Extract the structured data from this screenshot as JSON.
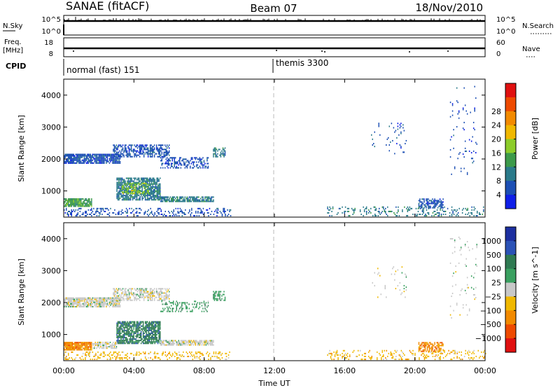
{
  "header": {
    "station": "SANAE (fitACF)",
    "beam": "Beam 07",
    "date": "18/Nov/2010"
  },
  "top_panels": {
    "nsky_label": "N.Sky",
    "nsearch_label": "N.Search",
    "nsky_ticks": [
      "10^5",
      "10^0"
    ],
    "nsearch_ticks": [
      "10^5",
      "10^0"
    ],
    "freq_label_1": "Freq.",
    "freq_label_2": "[MHz]",
    "freq_ticks": [
      "18",
      "8"
    ],
    "nave_label": "Nave",
    "nave_ticks": [
      "60",
      "0"
    ],
    "cpid_label": "CPID",
    "cpid_segments": [
      {
        "label": "normal (fast) 151",
        "start_hour": 0
      },
      {
        "label": "themis 3300",
        "start_hour": 12
      }
    ]
  },
  "chart_data": [
    {
      "type": "heatmap",
      "title": "",
      "quantity": "Power",
      "xlabel": "Time UT",
      "ylabel": "Slant Range [km]",
      "colorbar_label": "Power [dB]",
      "xlim": [
        0,
        24
      ],
      "ylim": [
        180,
        4500
      ],
      "x_ticks": [
        "00:00",
        "04:00",
        "08:00",
        "12:00",
        "16:00",
        "20:00",
        "00:00"
      ],
      "y_ticks": [
        1000,
        2000,
        3000,
        4000
      ],
      "colorbar_ticks": [
        "4",
        "8",
        "12",
        "16",
        "20",
        "24",
        "28"
      ],
      "colors": [
        "#0f1fe8",
        "#1c4fb4",
        "#2a7a8a",
        "#3c9a4a",
        "#8ccc2a",
        "#f0b800",
        "#f28a00",
        "#ee4a00",
        "#e01010"
      ],
      "regions": [
        {
          "t0": 0.0,
          "t1": 3.2,
          "r0": 1850,
          "r1": 2150,
          "level": 1,
          "density": 0.85
        },
        {
          "t0": 2.8,
          "t1": 6.0,
          "r0": 2050,
          "r1": 2450,
          "level": 1,
          "density": 0.6
        },
        {
          "t0": 5.5,
          "t1": 8.2,
          "r0": 1700,
          "r1": 2050,
          "level": 1,
          "density": 0.4
        },
        {
          "t0": 8.5,
          "t1": 9.2,
          "r0": 2050,
          "r1": 2350,
          "level": 2,
          "density": 0.6
        },
        {
          "t0": 3.0,
          "t1": 5.5,
          "r0": 700,
          "r1": 1400,
          "level": 2,
          "density": 0.8
        },
        {
          "t0": 3.3,
          "t1": 4.8,
          "r0": 900,
          "r1": 1250,
          "level": 4,
          "density": 0.4
        },
        {
          "t0": 0.0,
          "t1": 1.6,
          "r0": 500,
          "r1": 750,
          "level": 3,
          "density": 0.9
        },
        {
          "t0": 5.5,
          "t1": 8.5,
          "r0": 650,
          "r1": 800,
          "level": 2,
          "density": 0.8
        },
        {
          "t0": 20.2,
          "t1": 21.6,
          "r0": 450,
          "r1": 750,
          "level": 1,
          "density": 0.7
        },
        {
          "t0": 17.5,
          "t1": 19.5,
          "r0": 2100,
          "r1": 3100,
          "level": 1,
          "density": 0.05
        },
        {
          "t0": 22.0,
          "t1": 23.5,
          "r0": 1500,
          "r1": 4300,
          "level": 1,
          "density": 0.04
        },
        {
          "t0": 0.0,
          "t1": 9.5,
          "r0": 200,
          "r1": 450,
          "level": 1,
          "density": 0.25
        },
        {
          "t0": 15.0,
          "t1": 24.0,
          "r0": 200,
          "r1": 500,
          "level": 2,
          "density": 0.2
        }
      ]
    },
    {
      "type": "heatmap",
      "title": "",
      "quantity": "Velocity",
      "xlabel": "Time UT",
      "ylabel": "Slant Range [km]",
      "colorbar_label": "Velocity [m s^-1]",
      "xlim": [
        0,
        24
      ],
      "ylim": [
        180,
        4500
      ],
      "x_ticks": [
        "00:00",
        "04:00",
        "08:00",
        "12:00",
        "16:00",
        "20:00",
        "00:00"
      ],
      "y_ticks": [
        1000,
        2000,
        3000,
        4000
      ],
      "colorbar_ticks": [
        "1000",
        "500",
        "100",
        "25",
        "−25",
        "−100",
        "−500",
        "−1000"
      ],
      "colors": [
        "#1c2fa0",
        "#2b52b6",
        "#2f7a52",
        "#3aa060",
        "#c8c8c8",
        "#f0b800",
        "#f28a00",
        "#ee4a00",
        "#e01010"
      ],
      "regions": [
        {
          "t0": 0.0,
          "t1": 3.2,
          "r0": 1850,
          "r1": 2150,
          "level": 4,
          "density": 0.85
        },
        {
          "t0": 2.8,
          "t1": 6.0,
          "r0": 2050,
          "r1": 2450,
          "level": 4,
          "density": 0.6
        },
        {
          "t0": 5.5,
          "t1": 8.2,
          "r0": 1700,
          "r1": 2050,
          "level": 3,
          "density": 0.3
        },
        {
          "t0": 8.5,
          "t1": 9.2,
          "r0": 2050,
          "r1": 2350,
          "level": 3,
          "density": 0.6
        },
        {
          "t0": 3.0,
          "t1": 5.5,
          "r0": 700,
          "r1": 1400,
          "level": 2,
          "density": 0.8
        },
        {
          "t0": 0.0,
          "t1": 1.6,
          "r0": 500,
          "r1": 750,
          "level": 6,
          "density": 0.9
        },
        {
          "t0": 1.6,
          "t1": 3.0,
          "r0": 550,
          "r1": 750,
          "level": 4,
          "density": 0.6
        },
        {
          "t0": 5.5,
          "t1": 8.5,
          "r0": 650,
          "r1": 800,
          "level": 4,
          "density": 0.8
        },
        {
          "t0": 20.2,
          "t1": 21.6,
          "r0": 450,
          "r1": 750,
          "level": 6,
          "density": 0.7
        },
        {
          "t0": 17.5,
          "t1": 19.5,
          "r0": 2100,
          "r1": 3100,
          "level": 4,
          "density": 0.05
        },
        {
          "t0": 22.0,
          "t1": 23.5,
          "r0": 1500,
          "r1": 4300,
          "level": 4,
          "density": 0.04
        },
        {
          "t0": 0.0,
          "t1": 9.5,
          "r0": 200,
          "r1": 450,
          "level": 5,
          "density": 0.25
        },
        {
          "t0": 15.0,
          "t1": 24.0,
          "r0": 200,
          "r1": 500,
          "level": 5,
          "density": 0.2
        }
      ]
    }
  ]
}
